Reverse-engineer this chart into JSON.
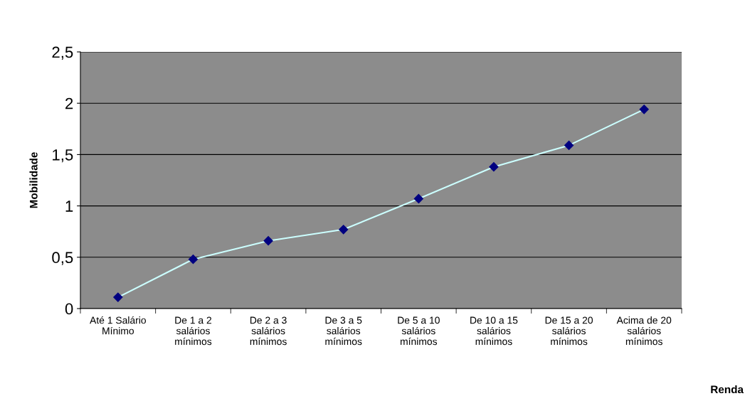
{
  "chart_data": {
    "type": "line",
    "xlabel": "Renda",
    "ylabel": "Mobilidade",
    "categories": [
      "Até 1 Salário\nMínimo",
      "De 1 a 2\nsalários\nmínimos",
      "De 2 a 3\nsalários\nmínimos",
      "De 3 a 5\nsalários\nmínimos",
      "De 5 a 10\nsalários\nmínimos",
      "De 10 a 15\nsalários\nmínimos",
      "De 15 a 20\nsalários\nmínimos",
      "Acima de 20\nsalários\nmínimos"
    ],
    "series": [
      {
        "color": "#ccffff",
        "values": [
          0.11,
          0.48,
          0.66,
          0.77,
          1.07,
          1.38,
          1.59,
          1.94
        ]
      }
    ],
    "ylim": [
      0,
      2.5
    ],
    "yticks": [
      0,
      {
        "value": 0.5,
        "label": "0,5"
      },
      1,
      {
        "value": 1.5,
        "label": "1,5"
      },
      2,
      {
        "value": 2.5,
        "label": "2,5"
      }
    ],
    "grid": "y",
    "marker": "diamond",
    "line_style": "solid"
  }
}
